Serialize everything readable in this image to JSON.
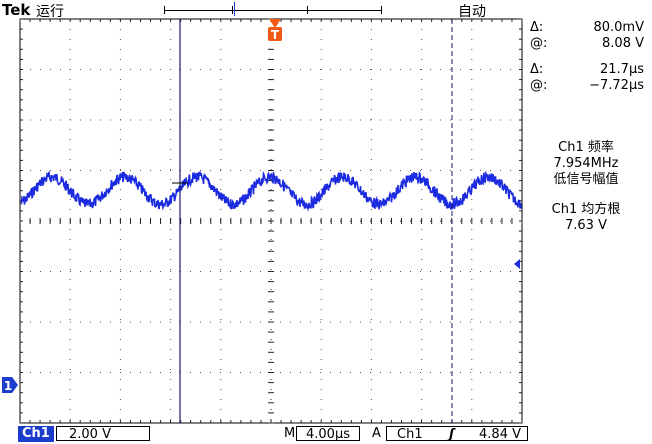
{
  "brand": "Tek",
  "run_status": "运行",
  "trigger_mode": "自动",
  "trigger_marker_label": "T",
  "channel_marker_label": "1",
  "readouts": {
    "voltage_delta_symbol": "Δ:",
    "voltage_delta": "80.0mV",
    "voltage_at_symbol": "@:",
    "voltage_at": "8.08 V",
    "time_delta_symbol": "Δ:",
    "time_delta": "21.7µs",
    "time_at_symbol": "@:",
    "time_at": "−7.72µs"
  },
  "measurements": [
    {
      "line1": "Ch1 频率",
      "line2": "7.954MHz",
      "line3": "低信号幅值"
    },
    {
      "line1": "Ch1 均方根",
      "line2": "7.63 V"
    }
  ],
  "bottom": {
    "channel": "Ch1",
    "volts_div": "2.00 V",
    "horizontal_label": "M",
    "time_div": "4.00µs",
    "acq_label": "A",
    "trigger_source": "Ch1",
    "trigger_slope": "ʃ",
    "trigger_level": "4.84 V"
  },
  "colors": {
    "trace": "#1c2be0",
    "trigger_marker": "#f05a14",
    "cursor": "#1a1a70",
    "channel_badge": "#1c3ccc"
  },
  "waveform": {
    "type": "line",
    "description_value_per_period_divs": 1.45,
    "cycles_visible": 6.9,
    "amplitude_divs": 0.27,
    "center_level_divs_above_center": 0.6
  }
}
